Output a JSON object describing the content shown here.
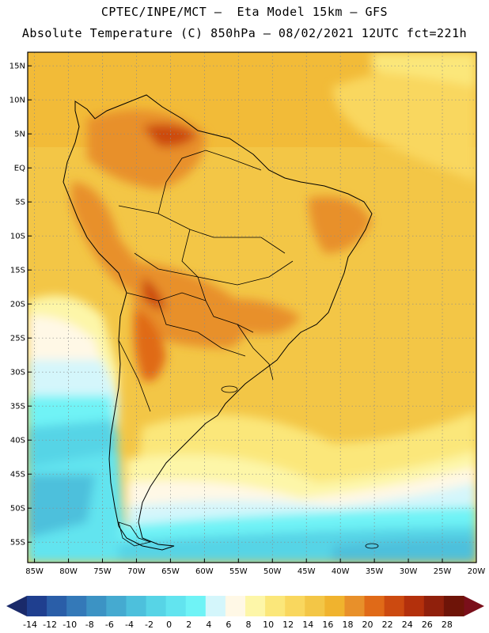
{
  "header": {
    "line1": "CPTEC/INPE/MCT –  Eta Model 15km – GFS",
    "line2": "Absolute Temperature (C) 850hPa – 08/02/2021 12UTC fct=221h"
  },
  "map": {
    "lat_labels": [
      "15N",
      "10N",
      "5N",
      "EQ",
      "5S",
      "10S",
      "15S",
      "20S",
      "25S",
      "30S",
      "35S",
      "40S",
      "45S",
      "50S",
      "55S"
    ],
    "lon_labels": [
      "85W",
      "80W",
      "75W",
      "70W",
      "65W",
      "60W",
      "55W",
      "50W",
      "45W",
      "40W",
      "35W",
      "30W",
      "25W",
      "20W"
    ],
    "lat_range": [
      -58,
      17
    ],
    "lon_range": [
      -86,
      -20
    ]
  },
  "colorbar": {
    "labels": [
      "-14",
      "-12",
      "-10",
      "-8",
      "-6",
      "-4",
      "-2",
      "0",
      "2",
      "4",
      "6",
      "8",
      "10",
      "12",
      "14",
      "16",
      "18",
      "20",
      "22",
      "24",
      "26",
      "28"
    ],
    "colors": [
      "#1f3f8f",
      "#2a5ea8",
      "#3479b8",
      "#3c93c4",
      "#45aad0",
      "#4dc0dc",
      "#57d4e6",
      "#62e4ef",
      "#6ff3f6",
      "#d4f6fb",
      "#fff8e6",
      "#fdf6a8",
      "#fbe77a",
      "#f9d75e",
      "#f3c646",
      "#f0b32e",
      "#e8902a",
      "#e06a18",
      "#cc4a10",
      "#b3300c",
      "#90200c",
      "#6e1408"
    ],
    "under_color": "#1a2a6a",
    "over_color": "#7a0f1a"
  }
}
